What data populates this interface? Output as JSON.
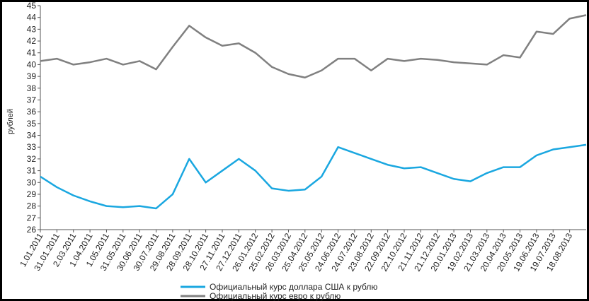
{
  "chart_data": {
    "type": "line",
    "y_label": "рублей",
    "categories": [
      "1.01.2011",
      "31.01.2011",
      "2.03.2011",
      "1.04.2011",
      "1.05.2011",
      "31.05.2011",
      "30.06.2011",
      "30.07.2011",
      "29.08.2011",
      "28.09.2011",
      "28.10.2011",
      "27.11.2011",
      "27.12.2011",
      "26.01.2012",
      "25.02.2012",
      "26.03.2012",
      "25.04.2012",
      "25.05.2012",
      "24.06.2012",
      "24.07.2012",
      "23.08.2012",
      "22.09.2012",
      "22.10.2012",
      "21.11.2012",
      "21.12.2012",
      "20.01.2013",
      "19.02.2013",
      "21.03.2013",
      "20.04.2013",
      "20.05.2013",
      "19.06.2013",
      "19.07.2013",
      "18.08.2013",
      null
    ],
    "series": [
      {
        "name": "Официальный курс доллара США к рублю",
        "color": "#1aa7e0",
        "values": [
          30.5,
          29.6,
          28.9,
          28.4,
          28.0,
          27.9,
          28.0,
          27.8,
          29.0,
          32.0,
          30.0,
          31.0,
          32.0,
          31.0,
          29.5,
          29.3,
          29.4,
          30.5,
          33.0,
          32.5,
          32.0,
          31.5,
          31.2,
          31.3,
          30.8,
          30.3,
          30.1,
          30.8,
          31.3,
          31.3,
          32.3,
          32.8,
          33.0,
          33.2
        ]
      },
      {
        "name": "Официальный курс евро к рублю",
        "color": "#808080",
        "values": [
          40.3,
          40.5,
          40.0,
          40.2,
          40.5,
          40.0,
          40.3,
          39.6,
          41.5,
          43.3,
          42.3,
          41.6,
          41.8,
          41.0,
          39.8,
          39.2,
          38.9,
          39.5,
          40.5,
          40.5,
          39.5,
          40.5,
          40.3,
          40.5,
          40.4,
          40.2,
          40.1,
          40.0,
          40.8,
          40.6,
          42.8,
          42.6,
          43.9,
          44.2
        ]
      }
    ],
    "ylim": [
      26,
      45
    ],
    "yticks": [
      26,
      27,
      28,
      29,
      30,
      31,
      32,
      33,
      34,
      35,
      36,
      37,
      38,
      39,
      40,
      41,
      42,
      43,
      44,
      45
    ],
    "grid": false
  }
}
